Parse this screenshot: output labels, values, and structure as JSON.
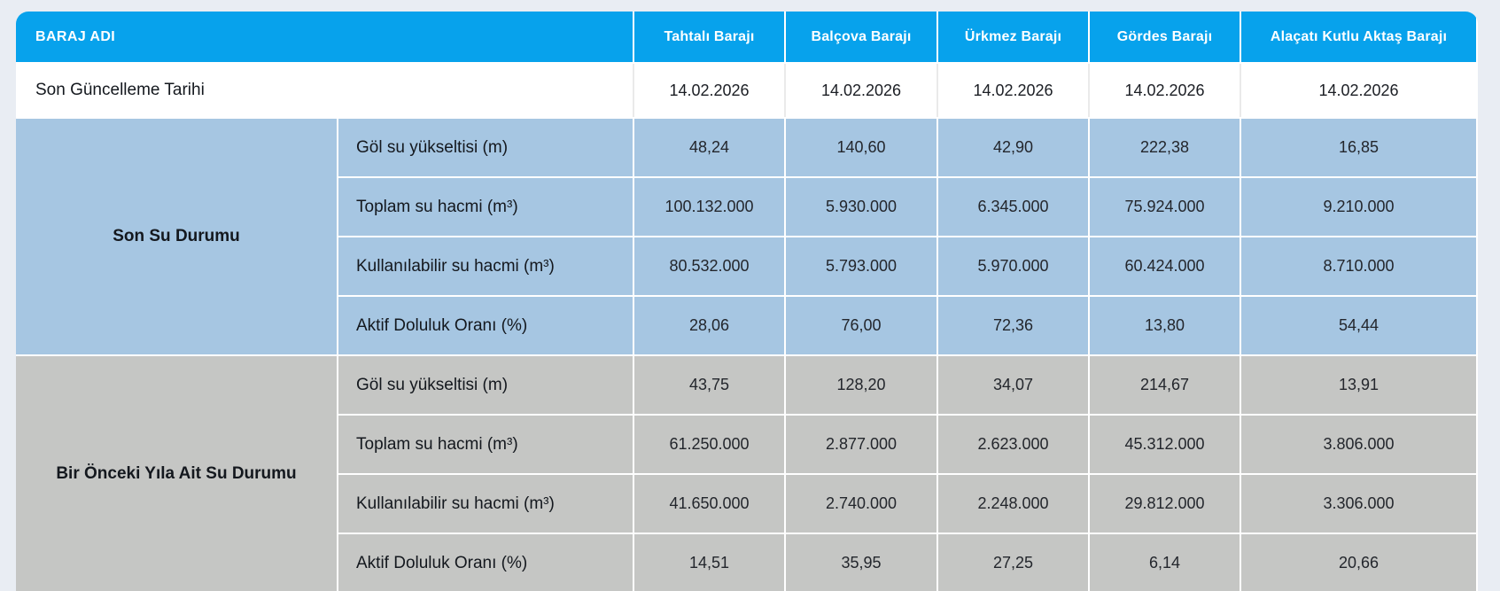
{
  "ui": {
    "page_bg": "#E9EDF3",
    "colors": {
      "header_bg": "#07A2EC",
      "header_text": "#FFFFFF",
      "section_recent_bg": "#A6C6E2",
      "section_previous_bg": "#C5C6C4",
      "update_row_bg": "#FFFFFF",
      "grid_line": "#FFFFFF",
      "update_row_divider": "#EAEAEA",
      "text_dark": "#14181E"
    }
  },
  "chart_data": {
    "type": "table",
    "header_label": "BARAJ ADI",
    "dams": [
      "Tahtalı Barajı",
      "Balçova Barajı",
      "Ürkmez Barajı",
      "Gördes Barajı",
      "Alaçatı Kutlu Aktaş Barajı"
    ],
    "update_label": "Son Güncelleme Tarihi",
    "update_dates": [
      "14.02.2026",
      "14.02.2026",
      "14.02.2026",
      "14.02.2026",
      "14.02.2026"
    ],
    "sections": [
      {
        "title": "Son Su Durumu",
        "rows": [
          {
            "label": "Göl su yükseltisi (m)",
            "values": [
              "48,24",
              "140,60",
              "42,90",
              "222,38",
              "16,85"
            ]
          },
          {
            "label": "Toplam su hacmi (m³)",
            "values": [
              "100.132.000",
              "5.930.000",
              "6.345.000",
              "75.924.000",
              "9.210.000"
            ]
          },
          {
            "label": "Kullanılabilir su hacmi (m³)",
            "values": [
              "80.532.000",
              "5.793.000",
              "5.970.000",
              "60.424.000",
              "8.710.000"
            ]
          },
          {
            "label": "Aktif Doluluk Oranı (%)",
            "values": [
              "28,06",
              "76,00",
              "72,36",
              "13,80",
              "54,44"
            ]
          }
        ]
      },
      {
        "title": "Bir Önceki Yıla Ait Su Durumu",
        "rows": [
          {
            "label": "Göl su yükseltisi (m)",
            "values": [
              "43,75",
              "128,20",
              "34,07",
              "214,67",
              "13,91"
            ]
          },
          {
            "label": "Toplam su hacmi (m³)",
            "values": [
              "61.250.000",
              "2.877.000",
              "2.623.000",
              "45.312.000",
              "3.806.000"
            ]
          },
          {
            "label": "Kullanılabilir su hacmi (m³)",
            "values": [
              "41.650.000",
              "2.740.000",
              "2.248.000",
              "29.812.000",
              "3.306.000"
            ]
          },
          {
            "label": "Aktif Doluluk Oranı (%)",
            "values": [
              "14,51",
              "35,95",
              "27,25",
              "6,14",
              "20,66"
            ]
          }
        ]
      }
    ]
  }
}
